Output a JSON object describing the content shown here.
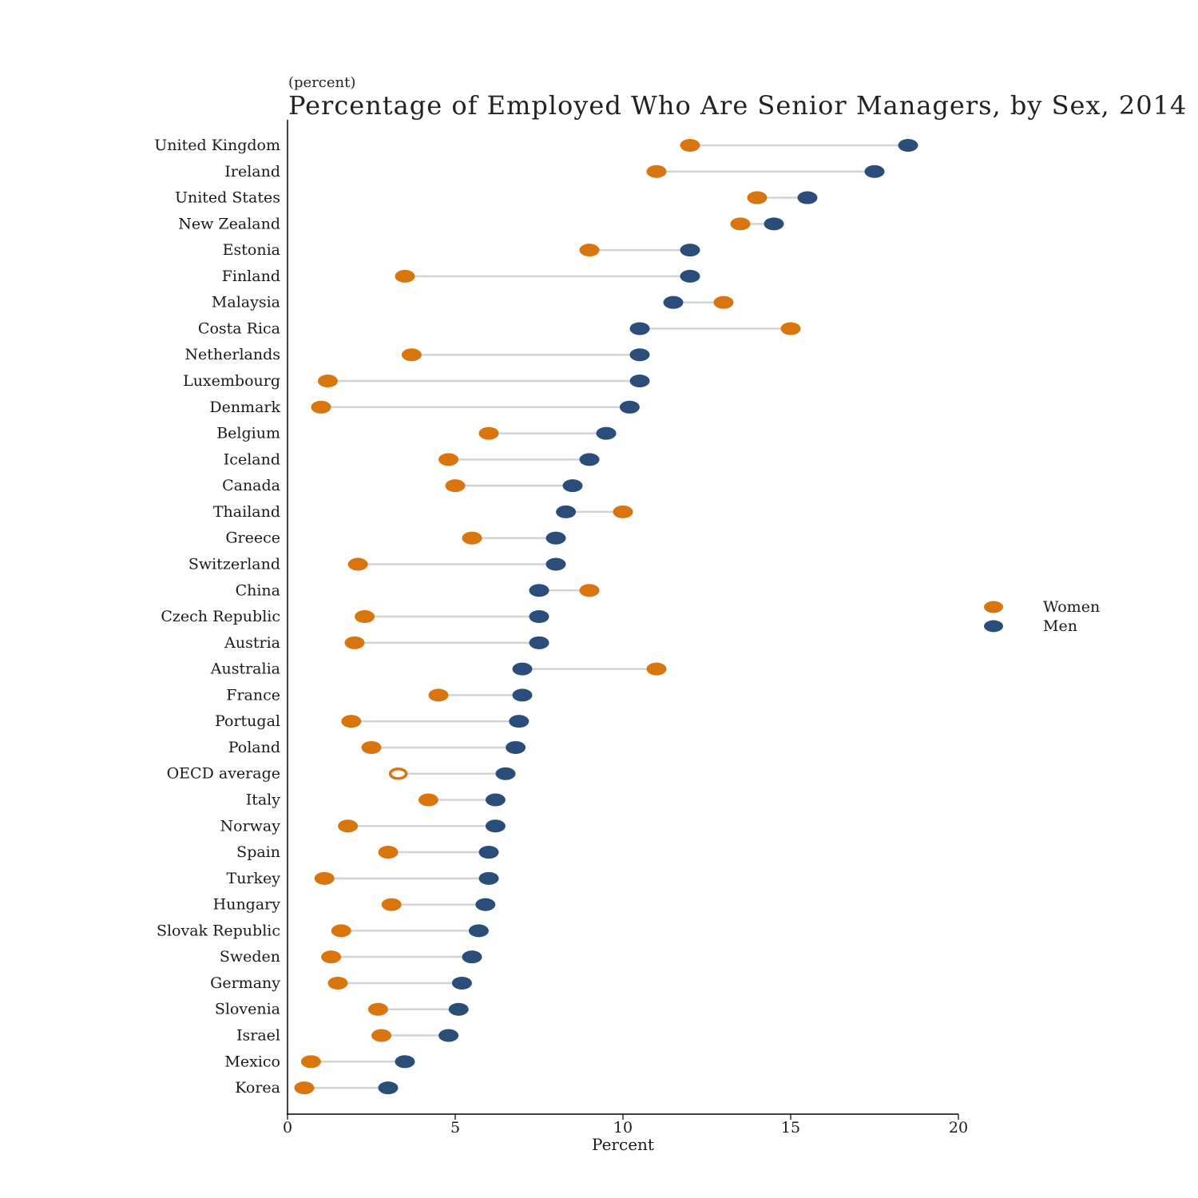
{
  "chart_data": {
    "type": "dumbbell",
    "title": "Percentage of Employed Who Are Senior Managers, by Sex, 2014",
    "subtitle": "(percent)",
    "xlabel": "Percent",
    "ylabel": "",
    "xlim": [
      0,
      20
    ],
    "xticks": [
      0,
      5,
      10,
      15,
      20
    ],
    "grid": false,
    "legend_position": "right",
    "colors": {
      "women": "#d9750f",
      "men": "#2a4d7a",
      "connector": "#d3d3d3"
    },
    "series": [
      {
        "name": "Women",
        "key": "women"
      },
      {
        "name": "Men",
        "key": "men"
      }
    ],
    "rows": [
      {
        "label": "United Kingdom",
        "women": 12.0,
        "men": 18.5
      },
      {
        "label": "Ireland",
        "women": 11.0,
        "men": 17.5
      },
      {
        "label": "United States",
        "women": 14.0,
        "men": 15.5
      },
      {
        "label": "New Zealand",
        "women": 13.5,
        "men": 14.5
      },
      {
        "label": "Estonia",
        "women": 9.0,
        "men": 12.0
      },
      {
        "label": "Finland",
        "women": 3.5,
        "men": 12.0
      },
      {
        "label": "Malaysia",
        "women": 13.0,
        "men": 11.5
      },
      {
        "label": "Costa Rica",
        "women": 15.0,
        "men": 10.5
      },
      {
        "label": "Netherlands",
        "women": 3.7,
        "men": 10.5
      },
      {
        "label": "Luxembourg",
        "women": 1.2,
        "men": 10.5
      },
      {
        "label": "Denmark",
        "women": 1.0,
        "men": 10.2
      },
      {
        "label": "Belgium",
        "women": 6.0,
        "men": 9.5
      },
      {
        "label": "Iceland",
        "women": 4.8,
        "men": 9.0
      },
      {
        "label": "Canada",
        "women": 5.0,
        "men": 8.5
      },
      {
        "label": "Thailand",
        "women": 10.0,
        "men": 8.3
      },
      {
        "label": "Greece",
        "women": 5.5,
        "men": 8.0
      },
      {
        "label": "Switzerland",
        "women": 2.1,
        "men": 8.0
      },
      {
        "label": "China",
        "women": 9.0,
        "men": 7.5
      },
      {
        "label": "Czech Republic",
        "women": 2.3,
        "men": 7.5
      },
      {
        "label": "Austria",
        "women": 2.0,
        "men": 7.5
      },
      {
        "label": "Australia",
        "women": 11.0,
        "men": 7.0
      },
      {
        "label": "France",
        "women": 4.5,
        "men": 7.0
      },
      {
        "label": "Portugal",
        "women": 1.9,
        "men": 6.9
      },
      {
        "label": "Poland",
        "women": 2.5,
        "men": 6.8
      },
      {
        "label": "OECD average",
        "women": 3.3,
        "men": 6.5,
        "women_marker": "hollow"
      },
      {
        "label": "Italy",
        "women": 4.2,
        "men": 6.2
      },
      {
        "label": "Norway",
        "women": 1.8,
        "men": 6.2
      },
      {
        "label": "Spain",
        "women": 3.0,
        "men": 6.0
      },
      {
        "label": "Turkey",
        "women": 1.1,
        "men": 6.0
      },
      {
        "label": "Hungary",
        "women": 3.1,
        "men": 5.9
      },
      {
        "label": "Slovak Republic",
        "women": 1.6,
        "men": 5.7
      },
      {
        "label": "Sweden",
        "women": 1.3,
        "men": 5.5
      },
      {
        "label": "Germany",
        "women": 1.5,
        "men": 5.2
      },
      {
        "label": "Slovenia",
        "women": 2.7,
        "men": 5.1
      },
      {
        "label": "Israel",
        "women": 2.8,
        "men": 4.8
      },
      {
        "label": "Mexico",
        "women": 0.7,
        "men": 3.5
      },
      {
        "label": "Korea",
        "women": 0.5,
        "men": 3.0
      }
    ]
  }
}
